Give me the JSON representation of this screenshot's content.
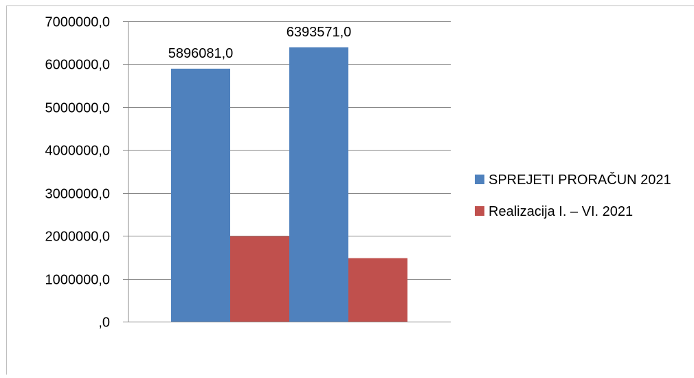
{
  "chart_data": {
    "type": "bar",
    "categories": [
      "",
      ""
    ],
    "series": [
      {
        "name": "SPREJETI PRORAČUN 2021",
        "color": "#4F81BD",
        "values": [
          5896081.0,
          6393571.0
        ],
        "data_labels": [
          "5896081,0",
          "6393571,0"
        ]
      },
      {
        "name": "Realizacija I. – VI. 2021",
        "color": "#C0504D",
        "values": [
          1990000,
          1480000
        ],
        "data_labels": [
          "",
          ""
        ]
      }
    ],
    "title": "",
    "xlabel": "",
    "ylabel": "",
    "ylim": [
      0,
      7000000
    ],
    "yticks": [
      0,
      1000000,
      2000000,
      3000000,
      4000000,
      5000000,
      6000000,
      7000000
    ],
    "ytick_labels": [
      ",0",
      "1000000,0",
      "2000000,0",
      "3000000,0",
      "4000000,0",
      "5000000,0",
      "6000000,0",
      "7000000,0"
    ],
    "grid": true,
    "legend_position": "right"
  }
}
